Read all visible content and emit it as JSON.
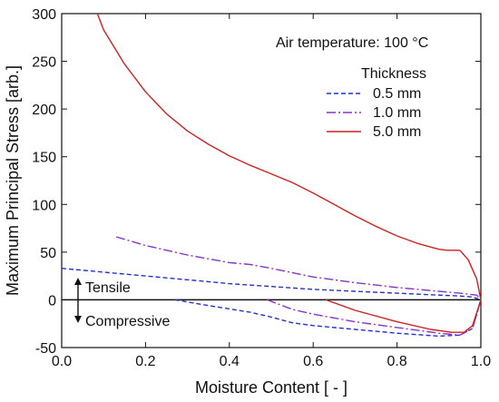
{
  "chart_data": {
    "type": "line",
    "title": "",
    "xlabel": "Moisture Content  [ - ]",
    "ylabel": "Maximum Principal Stress  [arb.]",
    "xlim": [
      0.0,
      1.0
    ],
    "ylim": [
      -50,
      300
    ],
    "grid": false,
    "x_ticks": [
      0.0,
      0.2,
      0.4,
      0.6,
      0.8,
      1.0
    ],
    "x_tick_labels": [
      "0.0",
      "0.2",
      "0.4",
      "0.6",
      "0.8",
      "1.0"
    ],
    "y_ticks": [
      -50,
      0,
      50,
      100,
      150,
      200,
      250,
      300
    ],
    "y_tick_labels": [
      "-50",
      "0",
      "50",
      "100",
      "150",
      "200",
      "250",
      "300"
    ],
    "legend": {
      "title": "Thickness",
      "placement": "top-right"
    },
    "annotations": {
      "condition": "Air temperature: 100 °C",
      "tensile": "Tensile",
      "compressive": "Compressive"
    },
    "series": [
      {
        "name": "0.5 mm",
        "color": "#2233cc",
        "style": "dashed",
        "upper": {
          "x": [
            0.0,
            0.1,
            0.2,
            0.3,
            0.4,
            0.5,
            0.6,
            0.7,
            0.8,
            0.9,
            0.95,
            0.98,
            1.0
          ],
          "y": [
            33,
            29,
            25,
            21,
            17,
            14,
            11,
            9,
            7,
            5,
            4,
            3,
            0
          ]
        },
        "lower": {
          "x": [
            0.27,
            0.35,
            0.45,
            0.5,
            0.55,
            0.6,
            0.7,
            0.8,
            0.9,
            0.95,
            0.98,
            1.0
          ],
          "y": [
            0,
            -6,
            -13,
            -18,
            -24,
            -27,
            -31,
            -35,
            -38,
            -37,
            -30,
            0
          ]
        }
      },
      {
        "name": "1.0 mm",
        "color": "#8833cc",
        "style": "dashdot",
        "upper": {
          "x": [
            0.13,
            0.2,
            0.3,
            0.4,
            0.45,
            0.5,
            0.6,
            0.7,
            0.8,
            0.9,
            0.95,
            0.99,
            1.0
          ],
          "y": [
            66,
            57,
            47,
            39,
            37,
            33,
            24,
            18,
            13,
            9,
            7,
            5,
            0
          ]
        },
        "lower": {
          "x": [
            0.49,
            0.55,
            0.6,
            0.7,
            0.8,
            0.9,
            0.95,
            0.98,
            1.0
          ],
          "y": [
            0,
            -10,
            -15,
            -23,
            -29,
            -35,
            -37,
            -30,
            0
          ]
        }
      },
      {
        "name": "5.0 mm",
        "color": "#cc2222",
        "style": "solid",
        "upper": {
          "x": [
            0.085,
            0.1,
            0.15,
            0.2,
            0.25,
            0.3,
            0.35,
            0.4,
            0.45,
            0.5,
            0.55,
            0.6,
            0.65,
            0.7,
            0.75,
            0.8,
            0.85,
            0.9,
            0.92,
            0.95,
            0.97,
            0.99,
            1.0
          ],
          "y": [
            300,
            283,
            247,
            218,
            195,
            177,
            163,
            151,
            141,
            132,
            123,
            112,
            100,
            88,
            77,
            67,
            59,
            53,
            52,
            52,
            42,
            22,
            0
          ]
        },
        "lower": {
          "x": [
            0.63,
            0.7,
            0.8,
            0.88,
            0.93,
            0.96,
            0.98,
            1.0
          ],
          "y": [
            0,
            -11,
            -23,
            -31,
            -34,
            -34,
            -27,
            0
          ]
        }
      }
    ]
  }
}
